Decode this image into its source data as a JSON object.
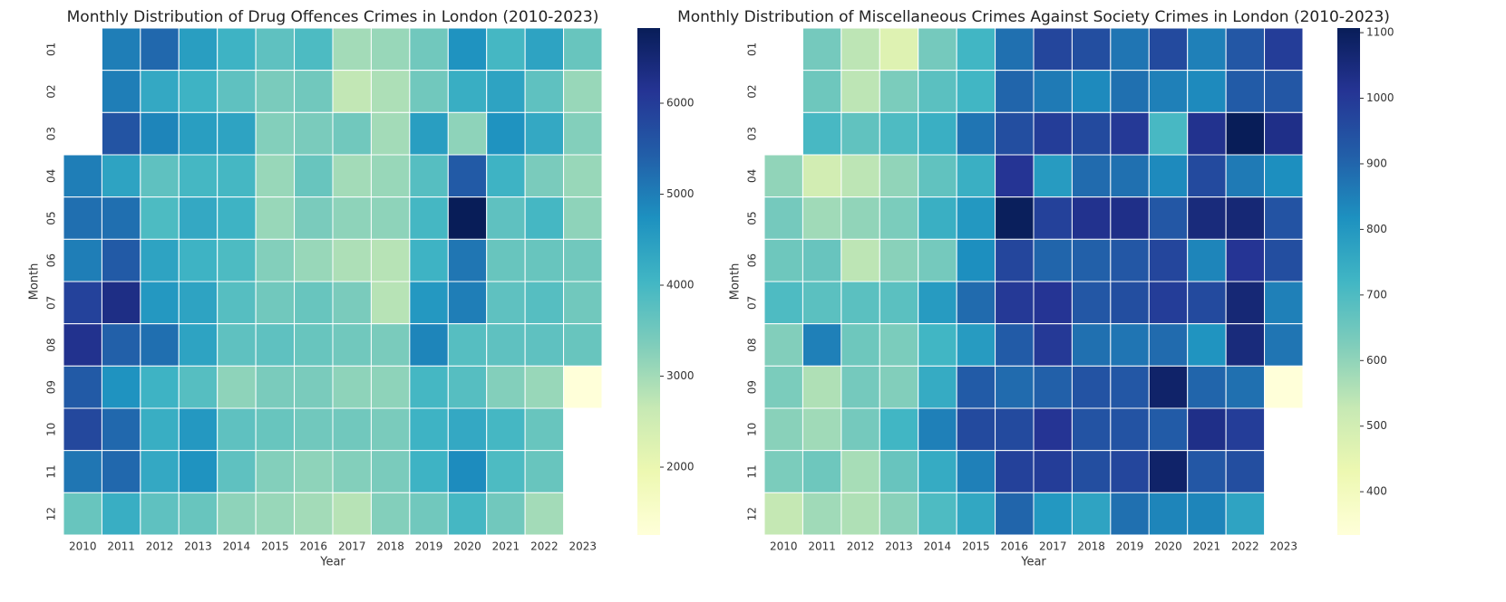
{
  "chart_data": [
    {
      "type": "heatmap",
      "title": "Monthly Distribution of Drug Offences Crimes in London (2010-2023)",
      "x_label": "Year",
      "y_label": "Month",
      "x": [
        "2010",
        "2011",
        "2012",
        "2013",
        "2014",
        "2015",
        "2016",
        "2017",
        "2018",
        "2019",
        "2020",
        "2021",
        "2022",
        "2023"
      ],
      "y": [
        "01",
        "02",
        "03",
        "04",
        "05",
        "06",
        "07",
        "08",
        "09",
        "10",
        "11",
        "12"
      ],
      "values": [
        [
          null,
          5000,
          5300,
          4500,
          4100,
          3700,
          3900,
          3000,
          3100,
          3500,
          4700,
          4000,
          4400,
          3600
        ],
        [
          null,
          5000,
          4300,
          4100,
          3700,
          3400,
          3500,
          2700,
          2900,
          3500,
          4200,
          4400,
          3700,
          3100
        ],
        [
          null,
          5600,
          4900,
          4500,
          4400,
          3300,
          3400,
          3500,
          3000,
          4500,
          3200,
          4700,
          4300,
          3300
        ],
        [
          5000,
          4400,
          3700,
          4000,
          4000,
          3100,
          3600,
          3000,
          3100,
          3800,
          5500,
          4100,
          3400,
          3100
        ],
        [
          5200,
          5200,
          3900,
          4300,
          4100,
          3100,
          3400,
          3200,
          3200,
          4000,
          6826,
          3700,
          4000,
          3200
        ],
        [
          5000,
          5500,
          4400,
          4100,
          3900,
          3300,
          3100,
          2900,
          2800,
          4100,
          5100,
          3600,
          3600,
          3500
        ],
        [
          5900,
          6300,
          4600,
          4400,
          3800,
          3500,
          3600,
          3400,
          2800,
          4600,
          5000,
          3700,
          3800,
          3500
        ],
        [
          6200,
          5400,
          5200,
          4400,
          3700,
          3700,
          3600,
          3500,
          3400,
          4900,
          3800,
          3700,
          3700,
          3600
        ],
        [
          5500,
          4700,
          4100,
          3800,
          3200,
          3400,
          3400,
          3200,
          3200,
          4000,
          3800,
          3300,
          3100,
          1254
        ],
        [
          5800,
          5300,
          4200,
          4600,
          3700,
          3600,
          3500,
          3500,
          3400,
          4100,
          4300,
          4000,
          3600,
          null
        ],
        [
          5100,
          5300,
          4300,
          4700,
          3700,
          3300,
          3200,
          3300,
          3400,
          4100,
          4800,
          3900,
          3600,
          null
        ],
        [
          3600,
          4200,
          3700,
          3600,
          3200,
          3100,
          3000,
          2800,
          3300,
          3500,
          4000,
          3500,
          3000,
          null
        ]
      ],
      "vlim": [
        1254,
        6826
      ],
      "colorbar_ticks": [
        2000,
        3000,
        4000,
        5000,
        6000
      ],
      "colormap": [
        "#ffffd9",
        "#edf8b1",
        "#c7e9b4",
        "#7fcdbb",
        "#41b6c4",
        "#1d91c0",
        "#225ea8",
        "#253494",
        "#081d58"
      ]
    },
    {
      "type": "heatmap",
      "title": "Monthly Distribution of Miscellaneous Crimes Against Society Crimes in London (2010-2023)",
      "x_label": "Year",
      "y_label": "Month",
      "x": [
        "2010",
        "2011",
        "2012",
        "2013",
        "2014",
        "2015",
        "2016",
        "2017",
        "2018",
        "2019",
        "2020",
        "2021",
        "2022",
        "2023"
      ],
      "y": [
        "01",
        "02",
        "03",
        "04",
        "05",
        "06",
        "07",
        "08",
        "09",
        "10",
        "11",
        "12"
      ],
      "values": [
        [
          null,
          640,
          540,
          470,
          640,
          720,
          880,
          970,
          950,
          870,
          960,
          850,
          930,
          990
        ],
        [
          null,
          650,
          540,
          630,
          680,
          720,
          900,
          860,
          830,
          880,
          850,
          830,
          920,
          930
        ],
        [
          null,
          710,
          670,
          700,
          740,
          870,
          950,
          990,
          960,
          1000,
          710,
          1020,
          1107,
          1030
        ],
        [
          600,
          500,
          540,
          600,
          670,
          740,
          1010,
          790,
          890,
          880,
          830,
          960,
          860,
          820
        ],
        [
          640,
          580,
          600,
          630,
          740,
          800,
          1100,
          980,
          1020,
          1030,
          930,
          1050,
          1060,
          940
        ],
        [
          650,
          660,
          540,
          610,
          640,
          820,
          970,
          900,
          910,
          930,
          970,
          840,
          1010,
          950
        ],
        [
          700,
          680,
          680,
          680,
          790,
          890,
          1000,
          1010,
          930,
          950,
          990,
          960,
          1060,
          850
        ],
        [
          620,
          850,
          650,
          630,
          720,
          790,
          920,
          1000,
          880,
          870,
          890,
          810,
          1050,
          870
        ],
        [
          630,
          560,
          640,
          620,
          750,
          920,
          890,
          910,
          940,
          930,
          1080,
          900,
          880,
          334
        ],
        [
          610,
          580,
          640,
          720,
          850,
          960,
          960,
          1010,
          940,
          940,
          920,
          1030,
          990,
          null
        ],
        [
          630,
          650,
          570,
          660,
          750,
          850,
          980,
          990,
          950,
          970,
          1080,
          930,
          950,
          null
        ],
        [
          530,
          580,
          560,
          610,
          700,
          760,
          900,
          800,
          770,
          880,
          840,
          840,
          770,
          null
        ]
      ],
      "vlim": [
        334,
        1107
      ],
      "colorbar_ticks": [
        400,
        500,
        600,
        700,
        800,
        900,
        1000,
        1100
      ],
      "colormap": [
        "#ffffd9",
        "#edf8b1",
        "#c7e9b4",
        "#7fcdbb",
        "#41b6c4",
        "#1d91c0",
        "#225ea8",
        "#253494",
        "#081d58"
      ]
    }
  ]
}
